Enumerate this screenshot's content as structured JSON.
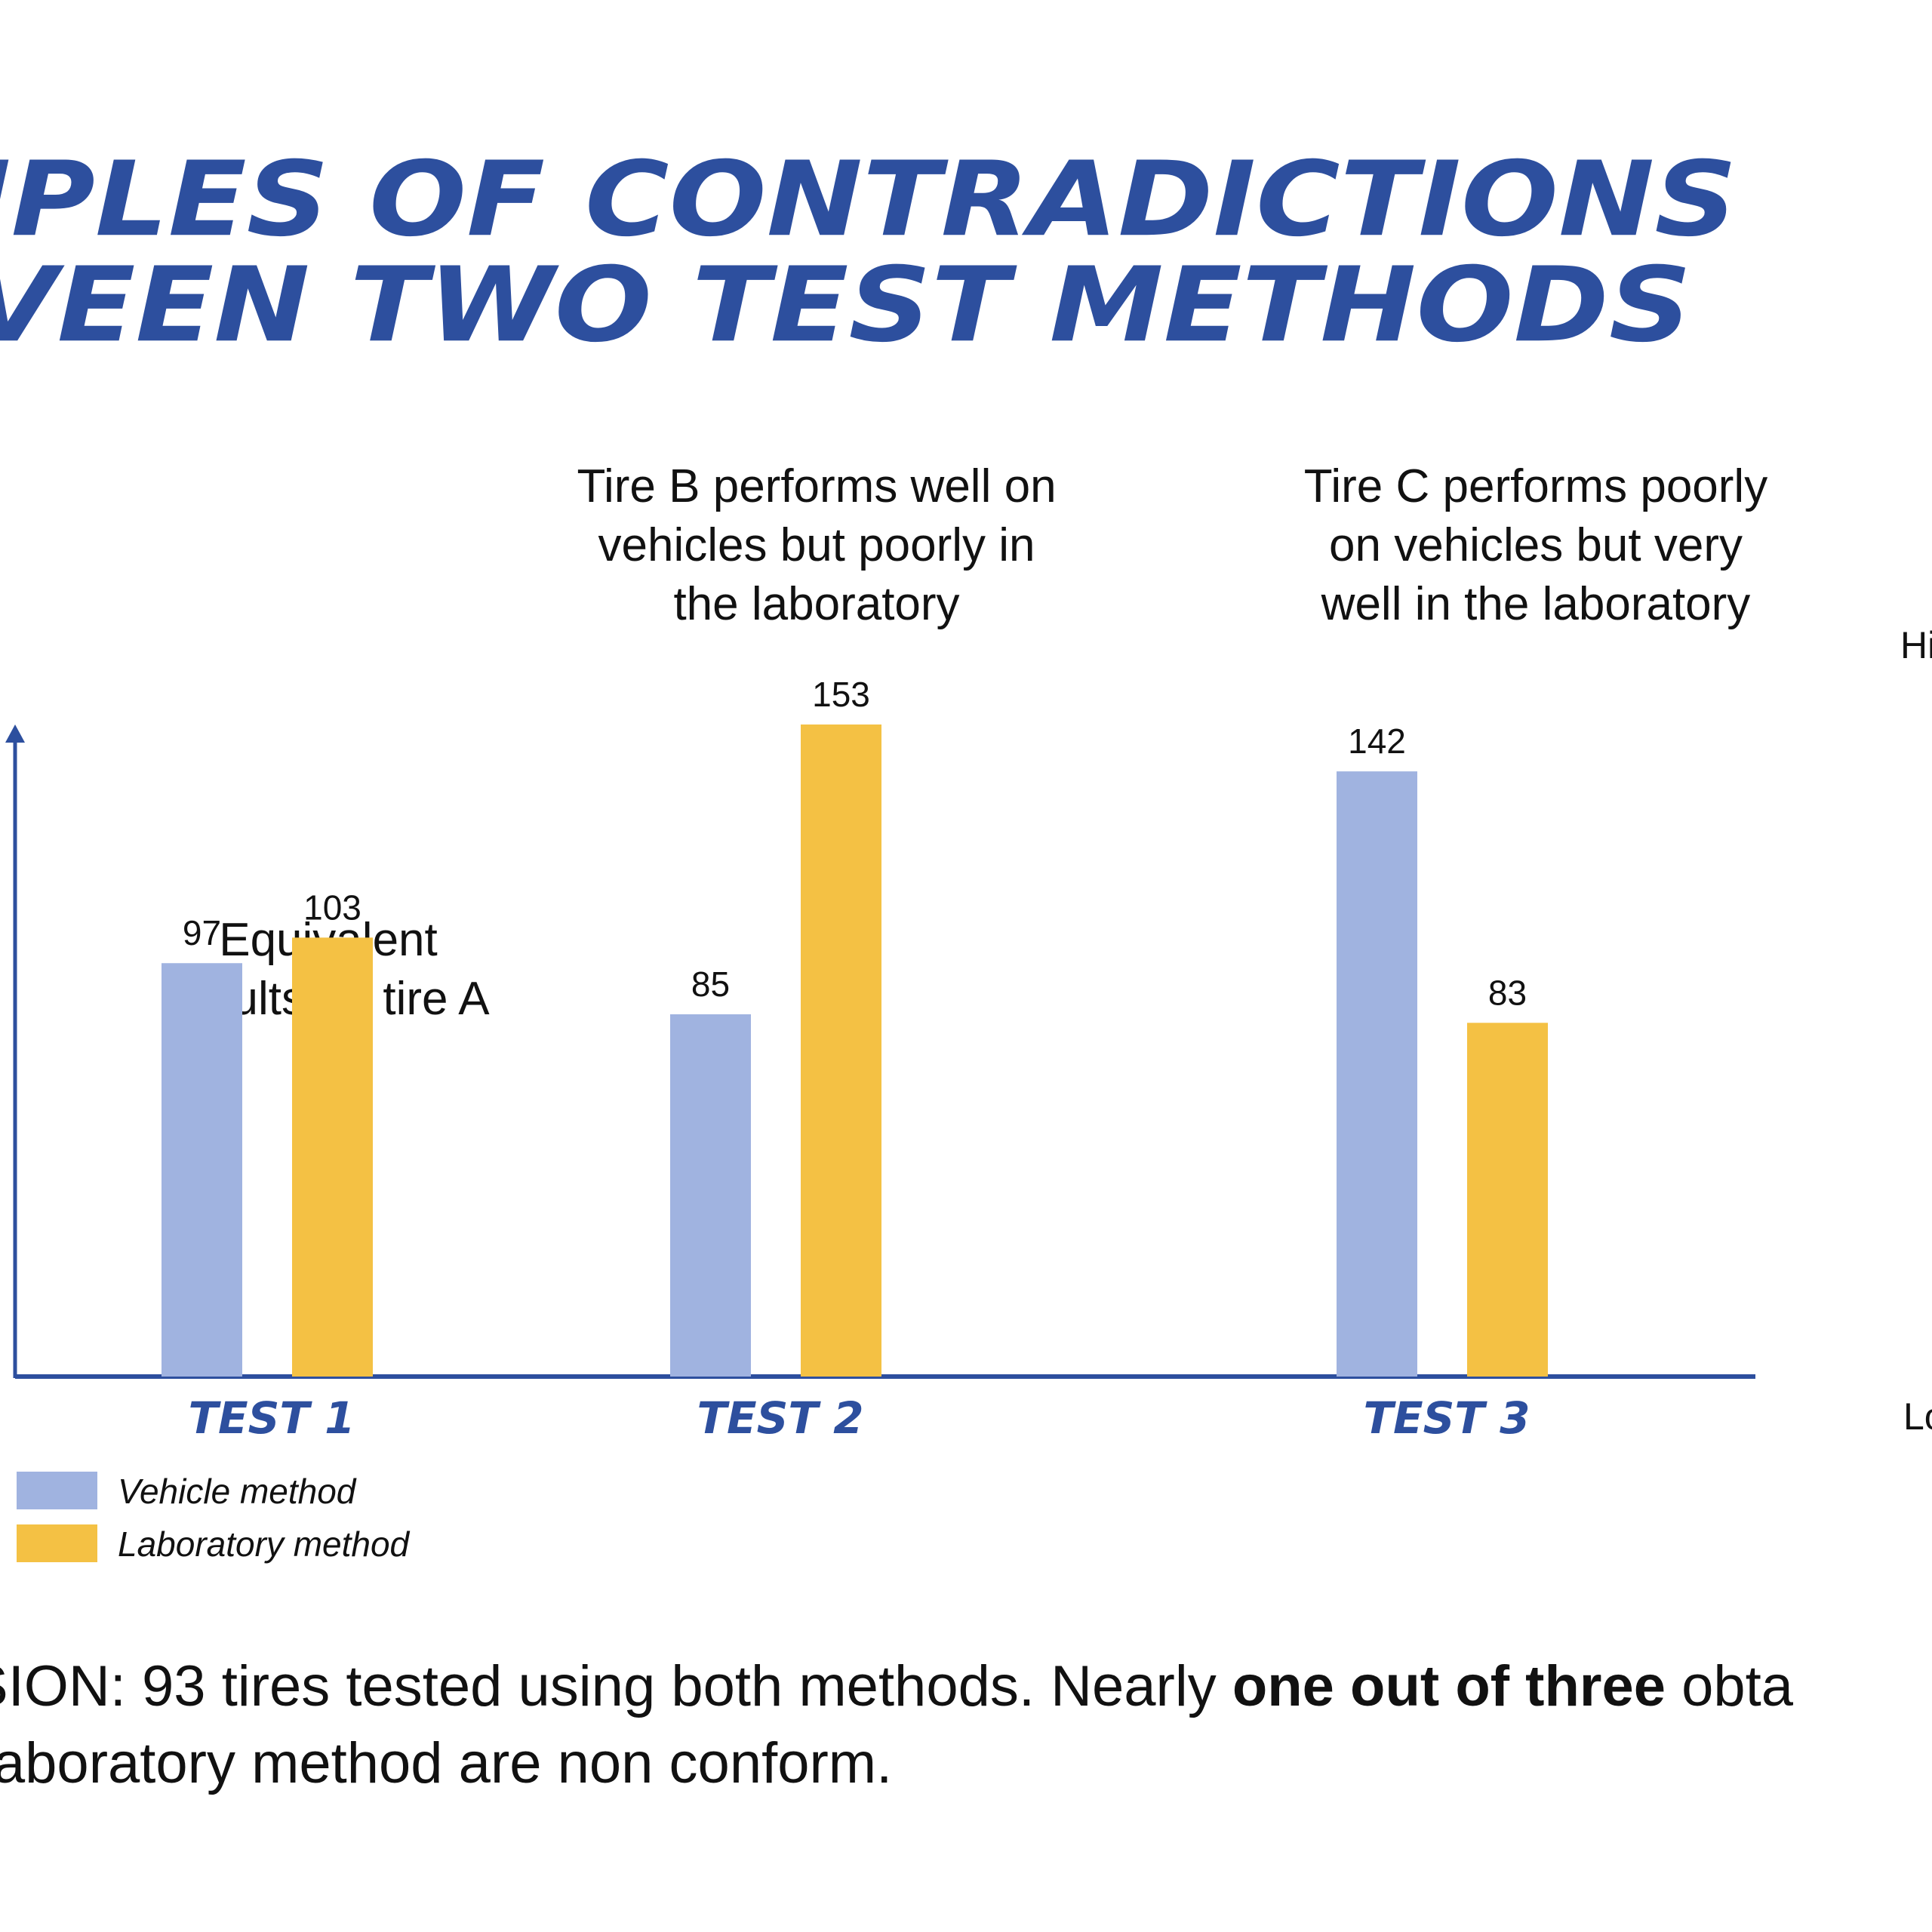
{
  "title": {
    "line1": "IPLES OF CONTRADICTIONS",
    "line2": "VEEN TWO TEST METHODS"
  },
  "annotations": {
    "tire_a": [
      "Equivalent",
      "results on tire A"
    ],
    "tire_b": [
      "Tire B performs well on",
      "vehicles but poorly in",
      "the laboratory"
    ],
    "tire_c": [
      "Tire C performs poorly",
      "on vehicles but very",
      "well in the laboratory"
    ]
  },
  "side_labels": {
    "high": "Hi",
    "low": "Lo"
  },
  "legend": {
    "vehicle": "Vehicle method",
    "laboratory": "Laboratory method"
  },
  "conclusion": {
    "line1_start": "SION: 93 tires tested using both methods. Nearly ",
    "line1_bold": "one out of three",
    "line1_end": " obta",
    "line2": "laboratory method are non conform."
  },
  "colors": {
    "vehicle": "#A0B3E0",
    "laboratory": "#F4C144",
    "axis": "#2D4F9E",
    "title": "#2D4F9E"
  },
  "chart_data": {
    "type": "bar",
    "categories": [
      "TEST 1",
      "TEST 2",
      "TEST 3"
    ],
    "series": [
      {
        "name": "Vehicle method",
        "values": [
          97,
          85,
          142
        ]
      },
      {
        "name": "Laboratory method",
        "values": [
          103,
          153,
          83
        ]
      }
    ],
    "ylim": [
      0,
      153
    ],
    "grid": false,
    "legend_position": "bottom-left",
    "y_axis_ticks": false
  }
}
